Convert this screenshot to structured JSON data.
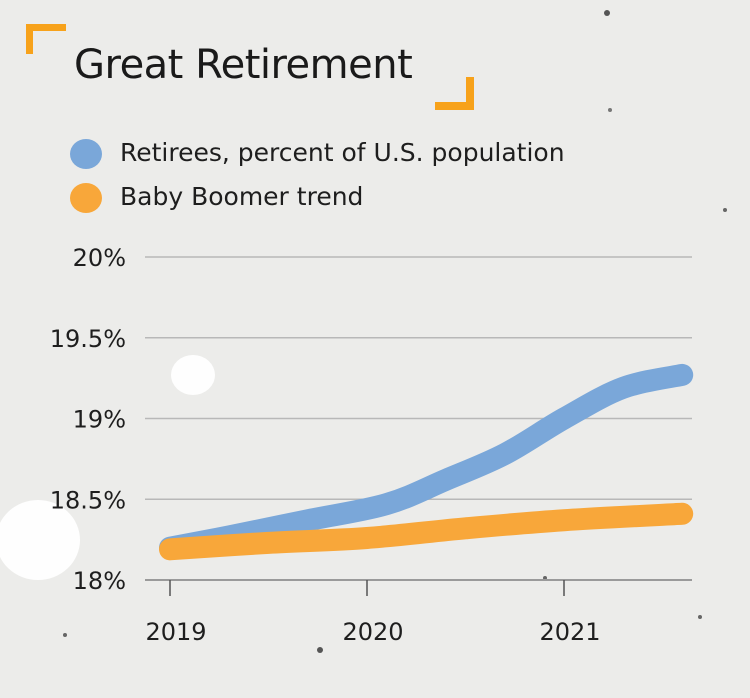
{
  "colors": {
    "accent": "#f7a21b",
    "retirees": "#7aa7d9",
    "boomer": "#f8a73a",
    "grid": "#b8b8b8",
    "text": "#1e1e1e"
  },
  "chart_data": {
    "type": "line",
    "title": "Great Retirement",
    "ylim": [
      18,
      20
    ],
    "yticks": [
      {
        "value": 20,
        "label": "20%"
      },
      {
        "value": 19.5,
        "label": "19.5%"
      },
      {
        "value": 19,
        "label": "19%"
      },
      {
        "value": 18.5,
        "label": "18.5%"
      },
      {
        "value": 18,
        "label": "18%"
      }
    ],
    "xlim": [
      2019,
      2021.6
    ],
    "xticks": [
      {
        "value": 2019,
        "label": "2019"
      },
      {
        "value": 2020,
        "label": "2020"
      },
      {
        "value": 2021,
        "label": "2021"
      }
    ],
    "grid": true,
    "legend_position": "top-left",
    "series": [
      {
        "name": "Retirees, percent of U.S. population",
        "color": "#7aa7d9",
        "x": [
          2019,
          2019.3,
          2019.7,
          2020.1,
          2020.4,
          2020.7,
          2021.0,
          2021.3,
          2021.6
        ],
        "y": [
          18.2,
          18.27,
          18.37,
          18.47,
          18.62,
          18.78,
          19.0,
          19.19,
          19.27
        ]
      },
      {
        "name": "Baby Boomer trend",
        "color": "#f8a73a",
        "x": [
          2019,
          2019.5,
          2020.0,
          2020.5,
          2021.0,
          2021.6
        ],
        "y": [
          18.19,
          18.23,
          18.26,
          18.32,
          18.37,
          18.41
        ]
      }
    ]
  }
}
